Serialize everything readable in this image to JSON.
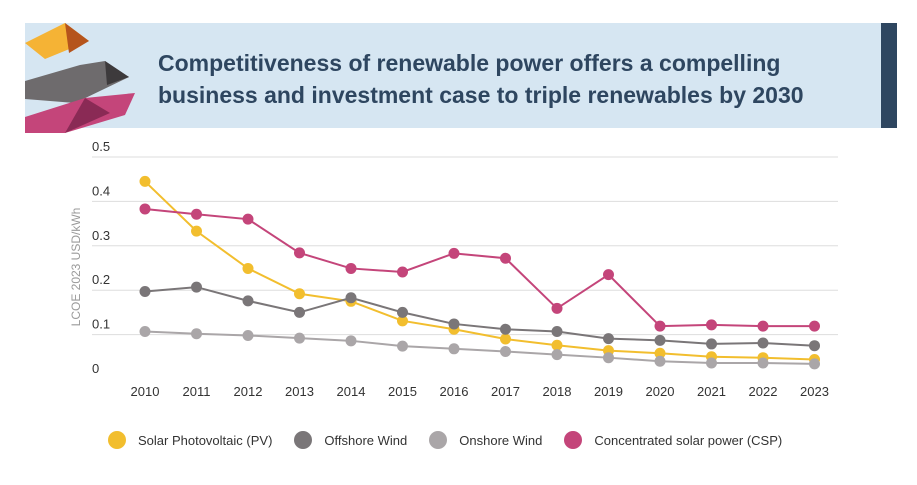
{
  "header": {
    "title_line1": "Competitiveness of renewable power offers a compelling",
    "title_line2": "business and investment case to triple renewables by 2030"
  },
  "colors": {
    "banner_bg": "#d6e6f2",
    "title": "#2e4660",
    "accent_bar": "#2e4660"
  },
  "chart_data": {
    "type": "line",
    "title": "",
    "xlabel": "",
    "ylabel": "LCOE 2023 USD/kWh",
    "ylim": [
      0,
      0.5
    ],
    "yticks": [
      "0.5",
      "0.4",
      "0.3",
      "0.2",
      "0.1",
      "0"
    ],
    "ytick_values": [
      0.5,
      0.4,
      0.3,
      0.2,
      0.1,
      0
    ],
    "categories": [
      "2010",
      "2011",
      "2012",
      "2013",
      "2014",
      "2015",
      "2016",
      "2017",
      "2018",
      "2019",
      "2020",
      "2021",
      "2022",
      "2023"
    ],
    "grid": true,
    "legend_position": "bottom",
    "series": [
      {
        "name": "Solar Photovoltaic (PV)",
        "color": "#f2be2e",
        "values": [
          0.445,
          0.333,
          0.249,
          0.192,
          0.175,
          0.131,
          0.112,
          0.09,
          0.076,
          0.064,
          0.058,
          0.05,
          0.048,
          0.044
        ]
      },
      {
        "name": "Offshore Wind",
        "color": "#7a7678",
        "values": [
          0.197,
          0.207,
          0.176,
          0.15,
          0.183,
          0.15,
          0.124,
          0.112,
          0.107,
          0.091,
          0.087,
          0.079,
          0.081,
          0.075
        ]
      },
      {
        "name": "Onshore Wind",
        "color": "#aaa6a8",
        "values": [
          0.107,
          0.102,
          0.098,
          0.092,
          0.086,
          0.074,
          0.068,
          0.062,
          0.055,
          0.048,
          0.04,
          0.036,
          0.036,
          0.034
        ]
      },
      {
        "name": "Concentrated solar power (CSP)",
        "color": "#c4457a",
        "values": [
          0.383,
          0.371,
          0.36,
          0.284,
          0.249,
          0.241,
          0.283,
          0.272,
          0.159,
          0.235,
          0.119,
          0.122,
          0.119,
          0.119
        ]
      }
    ]
  }
}
